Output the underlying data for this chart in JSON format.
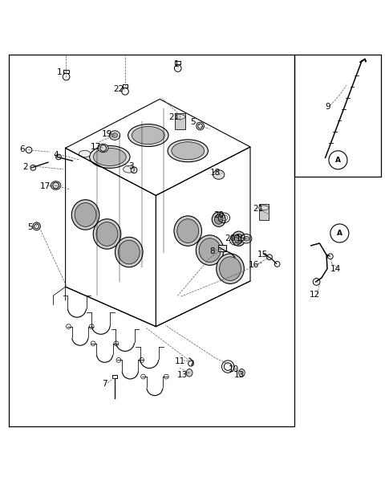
{
  "background_color": "#ffffff",
  "fig_width": 4.8,
  "fig_height": 6.04,
  "dpi": 100,
  "label_fontsize": 7.5,
  "line_color": "#000000",
  "label_color": "#000000",
  "label_positions": {
    "1a": [
      0.155,
      0.942,
      "1"
    ],
    "1b": [
      0.458,
      0.963,
      "1"
    ],
    "2": [
      0.065,
      0.695,
      "2"
    ],
    "3": [
      0.34,
      0.698,
      "3"
    ],
    "4": [
      0.145,
      0.728,
      "4"
    ],
    "5a": [
      0.078,
      0.54,
      "5"
    ],
    "5b": [
      0.502,
      0.812,
      "5"
    ],
    "6": [
      0.058,
      0.742,
      "6"
    ],
    "7": [
      0.272,
      0.134,
      "7"
    ],
    "8": [
      0.552,
      0.478,
      "8"
    ],
    "9": [
      0.852,
      0.852,
      "9"
    ],
    "10": [
      0.608,
      0.17,
      "10"
    ],
    "11": [
      0.468,
      0.192,
      "11"
    ],
    "12": [
      0.818,
      0.365,
      "12"
    ],
    "13a": [
      0.474,
      0.156,
      "13"
    ],
    "13b": [
      0.622,
      0.156,
      "13"
    ],
    "14": [
      0.872,
      0.432,
      "14"
    ],
    "15": [
      0.682,
      0.468,
      "15"
    ],
    "16": [
      0.66,
      0.442,
      "16"
    ],
    "17a": [
      0.118,
      0.645,
      "17"
    ],
    "17b": [
      0.248,
      0.748,
      "17"
    ],
    "18": [
      0.56,
      0.682,
      "18"
    ],
    "19a": [
      0.278,
      0.782,
      "19"
    ],
    "19b": [
      0.625,
      0.51,
      "19"
    ],
    "20a": [
      0.568,
      0.57,
      "20"
    ],
    "20b": [
      0.598,
      0.51,
      "20"
    ],
    "21a": [
      0.452,
      0.825,
      "21"
    ],
    "21b": [
      0.67,
      0.588,
      "21"
    ],
    "22": [
      0.308,
      0.898,
      "22"
    ]
  }
}
